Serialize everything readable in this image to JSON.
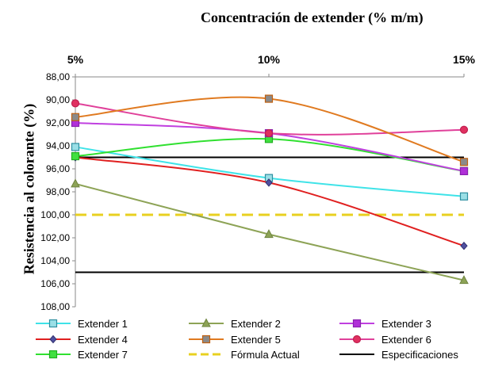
{
  "chart_data": {
    "type": "line",
    "title": "Concentración de extender (% m/m)",
    "xlabel": "Concentración de extender (% m/m)",
    "ylabel": "Resistencia al colorante (%)",
    "categories": [
      "5%",
      "10%",
      "15%"
    ],
    "ylim": [
      88,
      108
    ],
    "y_reversed": true,
    "y_ticks": [
      "88,00",
      "90,00",
      "92,00",
      "94,00",
      "96,00",
      "98,00",
      "100,00",
      "102,00",
      "104,00",
      "106,00",
      "108,00"
    ],
    "grid": false,
    "legend_position": "bottom",
    "series": [
      {
        "name": "Extender 1",
        "values": [
          94.1,
          96.8,
          98.4
        ],
        "color": "#3FE3E8",
        "marker": "square",
        "marker_fill": "#9ADFE6",
        "marker_stroke": "#2E8FA0",
        "smooth": true
      },
      {
        "name": "Extender 2",
        "values": [
          97.3,
          101.7,
          105.7
        ],
        "color": "#8DA356",
        "marker": "triangle",
        "marker_fill": "#8DA356",
        "marker_stroke": "#6F8440",
        "smooth": false
      },
      {
        "name": "Extender 3",
        "values": [
          92.0,
          92.9,
          96.2
        ],
        "color": "#C040E0",
        "marker": "square",
        "marker_fill": "#B030D8",
        "marker_stroke": "#8A20B0",
        "smooth": true
      },
      {
        "name": "Extender 4",
        "values": [
          95.0,
          97.2,
          102.7
        ],
        "color": "#E02020",
        "marker": "diamond",
        "marker_fill": "#5050A0",
        "marker_stroke": "#303070",
        "smooth": true
      },
      {
        "name": "Extender 5",
        "values": [
          91.5,
          89.9,
          95.4
        ],
        "color": "#E07A20",
        "marker": "square",
        "marker_fill": "#8A8A8A",
        "marker_stroke": "#C06010",
        "smooth": true
      },
      {
        "name": "Extender 6",
        "values": [
          90.3,
          92.9,
          92.6
        ],
        "color": "#E0409A",
        "marker": "circle",
        "marker_fill": "#E03060",
        "marker_stroke": "#C02050",
        "smooth": true
      },
      {
        "name": "Extender 7",
        "values": [
          94.9,
          93.4,
          96.2
        ],
        "color": "#30E030",
        "marker": "square",
        "marker_fill": "#40E040",
        "marker_stroke": "#20B020",
        "smooth": true
      },
      {
        "name": "Fórmula Actual",
        "values": [
          100,
          100,
          100
        ],
        "color": "#E8D020",
        "dash": true,
        "marker": "none",
        "smooth": false
      },
      {
        "name": "Especificaciones",
        "values": [
          95,
          95,
          95
        ],
        "color": "#000000",
        "marker": "none",
        "smooth": false
      },
      {
        "name": "Especificaciones",
        "values": [
          105,
          105,
          105
        ],
        "color": "#000000",
        "marker": "none",
        "smooth": false,
        "legend": false
      }
    ]
  }
}
